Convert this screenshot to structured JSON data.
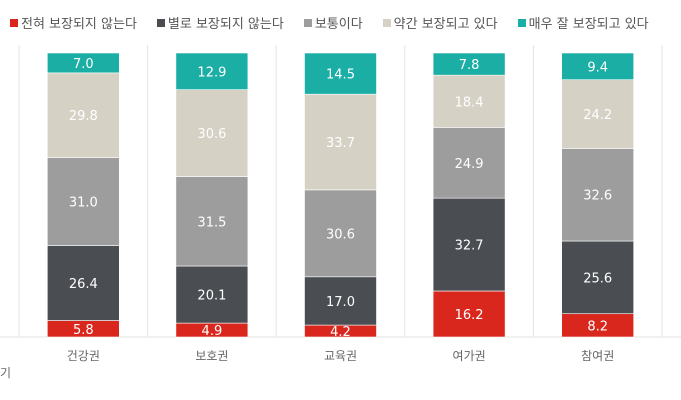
{
  "chart_data": {
    "type": "bar",
    "stacked": true,
    "categories": [
      "건강권",
      "보호권",
      "교육권",
      "여가권",
      "참여권"
    ],
    "series": [
      {
        "name": "전혀 보장되지 않는다",
        "color": "#d9271e",
        "values": [
          5.8,
          4.9,
          4.2,
          16.2,
          8.2
        ]
      },
      {
        "name": "별로 보장되지 않는다",
        "color": "#4a4d52",
        "values": [
          26.4,
          20.1,
          17.0,
          32.7,
          25.6
        ]
      },
      {
        "name": "보통이다",
        "color": "#9d9d9d",
        "values": [
          31.0,
          31.5,
          30.6,
          24.9,
          32.6
        ]
      },
      {
        "name": "약간 보장되고 있다",
        "color": "#d6d1c5",
        "values": [
          29.8,
          30.6,
          33.7,
          18.4,
          24.2
        ]
      },
      {
        "name": "매우 잘 보장되고 있다",
        "color": "#1aaea5",
        "values": [
          7.0,
          12.9,
          14.5,
          7.8,
          9.4
        ]
      }
    ],
    "ylim": [
      0,
      100
    ],
    "legend": "top",
    "unit": "%"
  },
  "footnote": "기"
}
